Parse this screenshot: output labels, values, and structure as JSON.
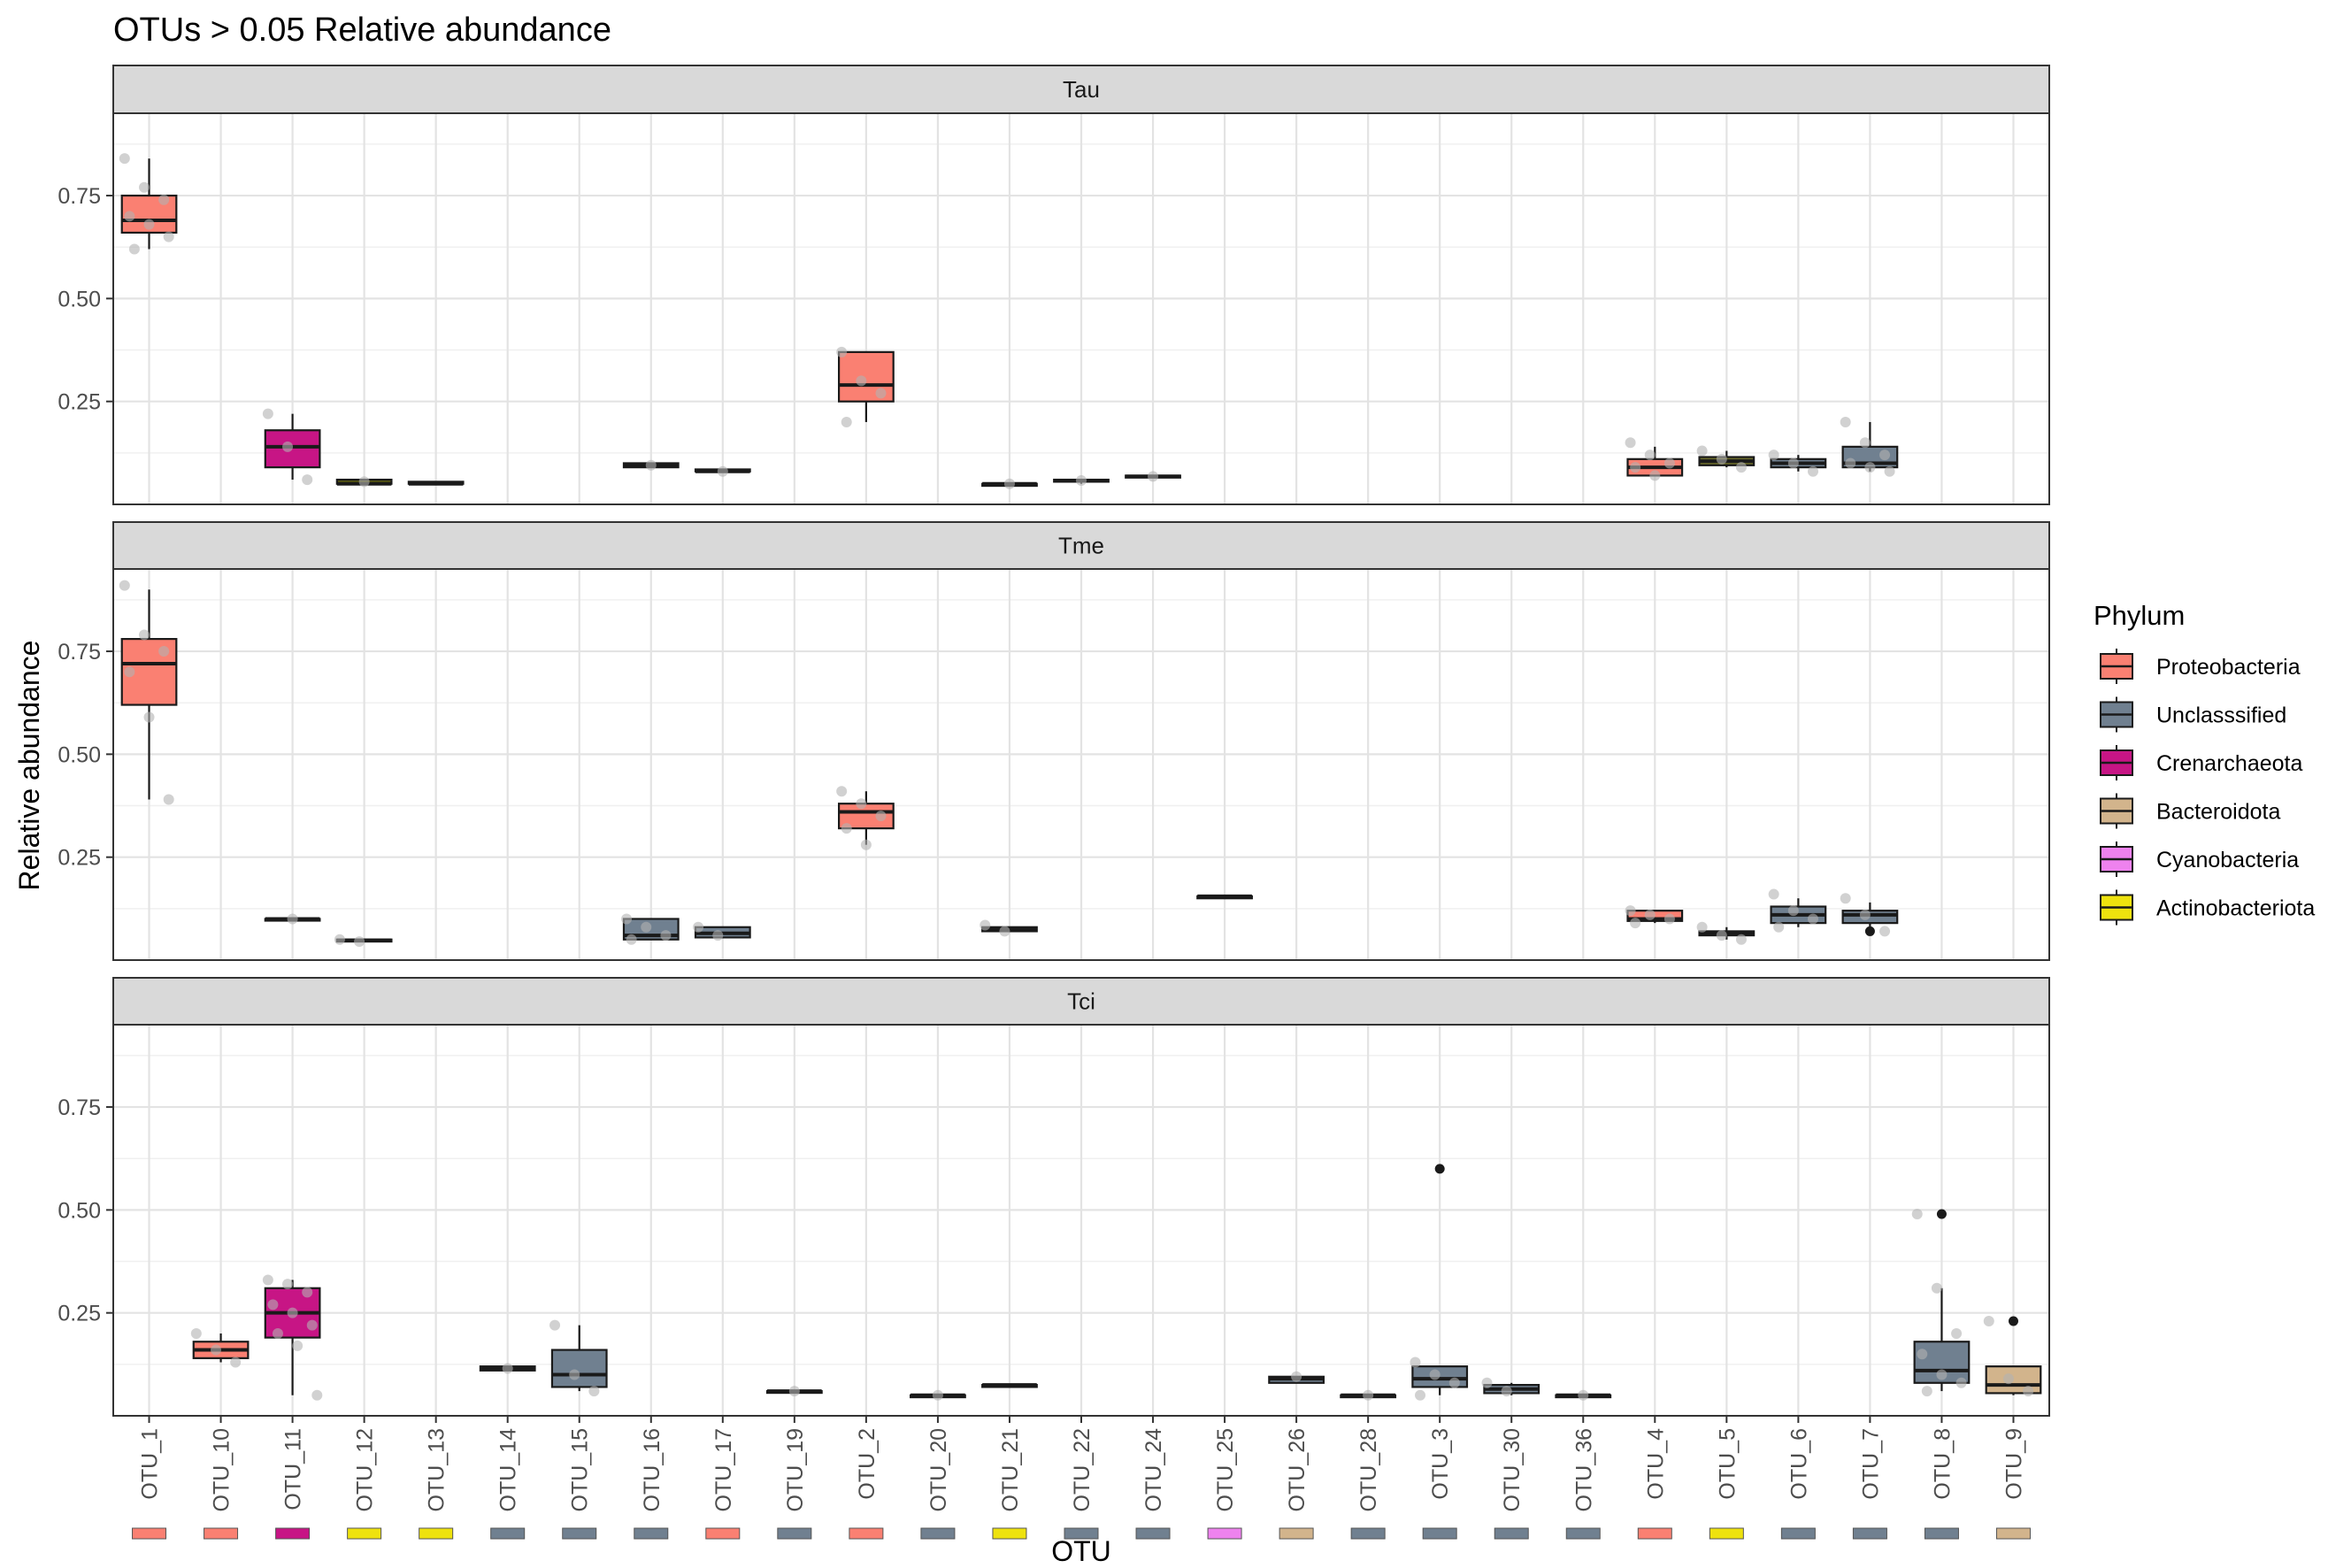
{
  "chart_data": {
    "type": "boxplot",
    "title": "OTUs > 0.05 Relative abundance",
    "xlabel": "OTU",
    "ylabel": "Relative abundance",
    "ylim": [
      0,
      0.95
    ],
    "yticks": [
      0.25,
      0.5,
      0.75
    ],
    "ytick_labels": [
      "0.25",
      "0.50",
      "0.75"
    ],
    "grid": true,
    "categories": [
      "OTU_1",
      "OTU_10",
      "OTU_11",
      "OTU_12",
      "OTU_13",
      "OTU_14",
      "OTU_15",
      "OTU_16",
      "OTU_17",
      "OTU_19",
      "OTU_2",
      "OTU_20",
      "OTU_21",
      "OTU_22",
      "OTU_24",
      "OTU_25",
      "OTU_26",
      "OTU_28",
      "OTU_3",
      "OTU_30",
      "OTU_36",
      "OTU_4",
      "OTU_5",
      "OTU_6",
      "OTU_7",
      "OTU_8",
      "OTU_9"
    ],
    "category_phylum": [
      "Proteobacteria",
      "Proteobacteria",
      "Crenarchaeota",
      "Actinobacteriota",
      "Actinobacteriota",
      "Unclasssified",
      "Unclasssified",
      "Unclasssified",
      "Proteobacteria",
      "Unclasssified",
      "Proteobacteria",
      "Unclasssified",
      "Actinobacteriota",
      "Unclasssified",
      "Unclasssified",
      "Cyanobacteria",
      "Bacteroidota",
      "Unclasssified",
      "Unclasssified",
      "Unclasssified",
      "Unclasssified",
      "Proteobacteria",
      "Actinobacteriota",
      "Unclasssified",
      "Unclasssified",
      "Unclasssified",
      "Bacteroidota"
    ],
    "legend": {
      "title": "Phylum",
      "position": "right",
      "items": [
        {
          "name": "Proteobacteria",
          "color": "#FA8072"
        },
        {
          "name": "Unclasssified",
          "color": "#708090"
        },
        {
          "name": "Crenarchaeota",
          "color": "#C71585"
        },
        {
          "name": "Bacteroidota",
          "color": "#D2B48C"
        },
        {
          "name": "Cyanobacteria",
          "color": "#EE82EE"
        },
        {
          "name": "Actinobacteriota",
          "color": "#EEE20E"
        }
      ]
    },
    "panels": [
      {
        "name": "Tau",
        "boxes": [
          {
            "otu": "OTU_1",
            "min": 0.62,
            "q1": 0.66,
            "median": 0.69,
            "q3": 0.75,
            "max": 0.84,
            "color": "#FA8072",
            "points": [
              0.84,
              0.77,
              0.74,
              0.7,
              0.68,
              0.65,
              0.62
            ]
          },
          {
            "otu": "OTU_11",
            "min": 0.06,
            "q1": 0.09,
            "median": 0.14,
            "q3": 0.18,
            "max": 0.22,
            "color": "#C71585",
            "points": [
              0.22,
              0.14,
              0.06
            ]
          },
          {
            "otu": "OTU_12",
            "min": 0.05,
            "q1": 0.05,
            "median": 0.05,
            "q3": 0.06,
            "max": 0.06,
            "color": "#5A5A10",
            "points": [
              0.055
            ]
          },
          {
            "otu": "OTU_13",
            "min": 0.05,
            "q1": 0.05,
            "median": 0.05,
            "q3": 0.055,
            "max": 0.055,
            "color": "#5A5A10",
            "points": []
          },
          {
            "otu": "OTU_16",
            "min": 0.09,
            "q1": 0.09,
            "median": 0.095,
            "q3": 0.1,
            "max": 0.1,
            "color": "#708090",
            "points": [
              0.095
            ]
          },
          {
            "otu": "OTU_17",
            "min": 0.08,
            "q1": 0.08,
            "median": 0.08,
            "q3": 0.085,
            "max": 0.085,
            "color": "#FA8072",
            "points": [
              0.08
            ]
          },
          {
            "otu": "OTU_2",
            "min": 0.2,
            "q1": 0.25,
            "median": 0.29,
            "q3": 0.37,
            "max": 0.37,
            "color": "#FA8072",
            "points": [
              0.37,
              0.3,
              0.27,
              0.2
            ]
          },
          {
            "otu": "OTU_21",
            "min": 0.045,
            "q1": 0.045,
            "median": 0.05,
            "q3": 0.05,
            "max": 0.05,
            "color": "#5A5A10",
            "points": [
              0.05
            ]
          },
          {
            "otu": "OTU_22",
            "min": 0.05,
            "q1": 0.055,
            "median": 0.058,
            "q3": 0.06,
            "max": 0.06,
            "color": "#708090",
            "points": [
              0.058
            ]
          },
          {
            "otu": "OTU_24",
            "min": 0.065,
            "q1": 0.065,
            "median": 0.068,
            "q3": 0.07,
            "max": 0.07,
            "color": "#708090",
            "points": [
              0.068
            ]
          },
          {
            "otu": "OTU_4",
            "min": 0.07,
            "q1": 0.07,
            "median": 0.09,
            "q3": 0.11,
            "max": 0.14,
            "color": "#FA8072",
            "points": [
              0.15,
              0.12,
              0.1,
              0.09,
              0.07
            ]
          },
          {
            "otu": "OTU_5",
            "min": 0.09,
            "q1": 0.095,
            "median": 0.105,
            "q3": 0.115,
            "max": 0.13,
            "color": "#6B6B2A",
            "points": [
              0.13,
              0.11,
              0.09
            ]
          },
          {
            "otu": "OTU_6",
            "min": 0.08,
            "q1": 0.09,
            "median": 0.1,
            "q3": 0.11,
            "max": 0.12,
            "color": "#708090",
            "points": [
              0.12,
              0.1,
              0.08
            ]
          },
          {
            "otu": "OTU_7",
            "min": 0.08,
            "q1": 0.09,
            "median": 0.1,
            "q3": 0.14,
            "max": 0.2,
            "color": "#708090",
            "points": [
              0.2,
              0.15,
              0.12,
              0.1,
              0.09,
              0.08
            ]
          }
        ]
      },
      {
        "name": "Tme",
        "boxes": [
          {
            "otu": "OTU_1",
            "min": 0.39,
            "q1": 0.62,
            "median": 0.72,
            "q3": 0.78,
            "max": 0.9,
            "color": "#FA8072",
            "points": [
              0.91,
              0.79,
              0.75,
              0.7,
              0.59,
              0.39
            ]
          },
          {
            "otu": "OTU_11",
            "min": 0.1,
            "q1": 0.1,
            "median": 0.1,
            "q3": 0.1,
            "max": 0.1,
            "color": "#C71585",
            "points": [
              0.1
            ]
          },
          {
            "otu": "OTU_12",
            "min": 0.045,
            "q1": 0.045,
            "median": 0.048,
            "q3": 0.05,
            "max": 0.05,
            "color": "#5A5A10",
            "points": [
              0.05,
              0.045
            ]
          },
          {
            "otu": "OTU_16",
            "min": 0.05,
            "q1": 0.05,
            "median": 0.06,
            "q3": 0.1,
            "max": 0.1,
            "color": "#708090",
            "points": [
              0.1,
              0.08,
              0.06,
              0.05
            ]
          },
          {
            "otu": "OTU_17",
            "min": 0.055,
            "q1": 0.055,
            "median": 0.065,
            "q3": 0.08,
            "max": 0.08,
            "color": "#708090",
            "points": [
              0.08,
              0.06
            ]
          },
          {
            "otu": "OTU_2",
            "min": 0.28,
            "q1": 0.32,
            "median": 0.36,
            "q3": 0.38,
            "max": 0.41,
            "color": "#FA8072",
            "points": [
              0.41,
              0.38,
              0.35,
              0.32,
              0.28
            ]
          },
          {
            "otu": "OTU_21",
            "min": 0.07,
            "q1": 0.07,
            "median": 0.075,
            "q3": 0.08,
            "max": 0.08,
            "color": "#5A5A10",
            "points": [
              0.085,
              0.07
            ]
          },
          {
            "otu": "OTU_25",
            "min": 0.15,
            "q1": 0.15,
            "median": 0.155,
            "q3": 0.155,
            "max": 0.155,
            "color": "#C71585",
            "points": []
          },
          {
            "otu": "OTU_4",
            "min": 0.09,
            "q1": 0.095,
            "median": 0.1,
            "q3": 0.12,
            "max": 0.12,
            "color": "#FA8072",
            "points": [
              0.12,
              0.11,
              0.1,
              0.09
            ]
          },
          {
            "otu": "OTU_5",
            "min": 0.05,
            "q1": 0.06,
            "median": 0.065,
            "q3": 0.07,
            "max": 0.08,
            "color": "#5A5A10",
            "points": [
              0.08,
              0.06,
              0.05
            ]
          },
          {
            "otu": "OTU_6",
            "min": 0.08,
            "q1": 0.09,
            "median": 0.11,
            "q3": 0.13,
            "max": 0.15,
            "color": "#708090",
            "points": [
              0.16,
              0.12,
              0.1,
              0.08
            ]
          },
          {
            "otu": "OTU_7",
            "min": 0.07,
            "q1": 0.09,
            "median": 0.11,
            "q3": 0.12,
            "max": 0.14,
            "color": "#708090",
            "points": [
              0.15,
              0.11,
              0.07
            ],
            "outliers": [
              0.07
            ]
          }
        ]
      },
      {
        "name": "Tci",
        "boxes": [
          {
            "otu": "OTU_10",
            "min": 0.13,
            "q1": 0.14,
            "median": 0.16,
            "q3": 0.18,
            "max": 0.2,
            "color": "#FA8072",
            "points": [
              0.2,
              0.16,
              0.13
            ]
          },
          {
            "otu": "OTU_11",
            "min": 0.05,
            "q1": 0.19,
            "median": 0.25,
            "q3": 0.31,
            "max": 0.33,
            "color": "#C71585",
            "points": [
              0.33,
              0.32,
              0.3,
              0.27,
              0.25,
              0.22,
              0.2,
              0.17,
              0.05
            ]
          },
          {
            "otu": "OTU_14",
            "min": 0.11,
            "q1": 0.11,
            "median": 0.115,
            "q3": 0.12,
            "max": 0.12,
            "color": "#708090",
            "points": [
              0.115
            ]
          },
          {
            "otu": "OTU_15",
            "min": 0.06,
            "q1": 0.07,
            "median": 0.1,
            "q3": 0.16,
            "max": 0.22,
            "color": "#708090",
            "points": [
              0.22,
              0.1,
              0.06
            ]
          },
          {
            "otu": "OTU_19",
            "min": 0.06,
            "q1": 0.06,
            "median": 0.06,
            "q3": 0.06,
            "max": 0.06,
            "color": "#708090",
            "points": [
              0.06
            ]
          },
          {
            "otu": "OTU_20",
            "min": 0.045,
            "q1": 0.045,
            "median": 0.05,
            "q3": 0.05,
            "max": 0.05,
            "color": "#708090",
            "points": [
              0.05
            ]
          },
          {
            "otu": "OTU_21",
            "min": 0.07,
            "q1": 0.07,
            "median": 0.075,
            "q3": 0.075,
            "max": 0.075,
            "color": "#5A5A10",
            "points": []
          },
          {
            "otu": "OTU_26",
            "min": 0.08,
            "q1": 0.08,
            "median": 0.09,
            "q3": 0.095,
            "max": 0.095,
            "color": "#708090",
            "points": [
              0.095
            ]
          },
          {
            "otu": "OTU_28",
            "min": 0.045,
            "q1": 0.045,
            "median": 0.05,
            "q3": 0.05,
            "max": 0.05,
            "color": "#708090",
            "points": [
              0.05
            ]
          },
          {
            "otu": "OTU_3",
            "min": 0.05,
            "q1": 0.07,
            "median": 0.09,
            "q3": 0.12,
            "max": 0.12,
            "color": "#708090",
            "points": [
              0.13,
              0.1,
              0.08,
              0.05
            ],
            "outliers": [
              0.6
            ]
          },
          {
            "otu": "OTU_30",
            "min": 0.05,
            "q1": 0.055,
            "median": 0.065,
            "q3": 0.075,
            "max": 0.08,
            "color": "#708090",
            "points": [
              0.08,
              0.06
            ]
          },
          {
            "otu": "OTU_36",
            "min": 0.045,
            "q1": 0.045,
            "median": 0.05,
            "q3": 0.05,
            "max": 0.05,
            "color": "#708090",
            "points": [
              0.05
            ]
          },
          {
            "otu": "OTU_8",
            "min": 0.06,
            "q1": 0.08,
            "median": 0.11,
            "q3": 0.18,
            "max": 0.31,
            "color": "#708090",
            "points": [
              0.49,
              0.31,
              0.2,
              0.15,
              0.1,
              0.08,
              0.06
            ],
            "outliers": [
              0.49
            ]
          },
          {
            "otu": "OTU_9",
            "min": 0.05,
            "q1": 0.055,
            "median": 0.075,
            "q3": 0.12,
            "max": 0.12,
            "color": "#D2B48C",
            "points": [
              0.23,
              0.09,
              0.06
            ],
            "outliers": [
              0.23
            ]
          }
        ]
      }
    ]
  }
}
